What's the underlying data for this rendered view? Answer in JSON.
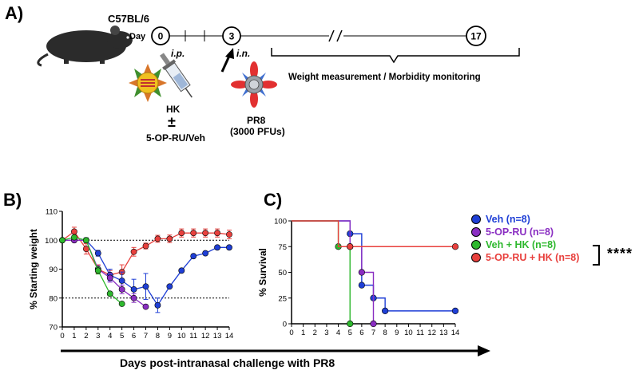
{
  "panels": {
    "a": "A)",
    "b": "B)",
    "c": "C)"
  },
  "timeline": {
    "strain": "C57BL/6",
    "day_label": "Day",
    "days": [
      "0",
      "3",
      "17"
    ],
    "ip_label": "i.p.",
    "in_label": "i.n.",
    "hk_label": "HK",
    "pm_label": "±",
    "treatment_label": "5-OP-RU/Veh",
    "virus_label": "PR8",
    "virus_dose": "(3000 PFUs)",
    "monitor_label": "Weight measurement / Morbidity monitoring"
  },
  "x_axis_title": "Days post-intranasal challenge with PR8",
  "significance": "****",
  "colors": {
    "veh": "#1f3fd6",
    "oprU": "#8a2ec2",
    "vehHK": "#2eb82e",
    "oprHK": "#e8403d"
  },
  "chart_data": [
    {
      "type": "line",
      "title": "",
      "xlabel": "",
      "ylabel": "% Starting weight",
      "ylim": [
        70,
        110
      ],
      "xlim": [
        0,
        14
      ],
      "yticks": [
        70,
        80,
        90,
        100,
        110
      ],
      "xticks": [
        0,
        1,
        2,
        3,
        4,
        5,
        6,
        7,
        8,
        9,
        10,
        11,
        12,
        13,
        14
      ],
      "ref_lines": [
        100,
        80
      ],
      "series": [
        {
          "name": "5-OP-RU + HK",
          "color": "#e8403d",
          "x": [
            0,
            1,
            2,
            3,
            4,
            5,
            6,
            7,
            8,
            9,
            10,
            11,
            12,
            13,
            14
          ],
          "y": [
            100,
            103,
            97,
            90,
            88,
            89,
            96,
            98,
            100.5,
            100.5,
            102.5,
            102.5,
            102.5,
            102.5,
            102
          ],
          "err": [
            0,
            1.5,
            1.8,
            1.5,
            1.5,
            2.5,
            1.5,
            1,
            1.2,
            1.3,
            1.4,
            1.4,
            1.4,
            1.4,
            1.5
          ]
        },
        {
          "name": "Veh",
          "color": "#1f3fd6",
          "x": [
            0,
            1,
            2,
            3,
            4,
            5,
            6,
            7,
            8,
            9,
            10,
            11,
            12,
            13,
            14
          ],
          "y": [
            100,
            100,
            100,
            95.5,
            88,
            86,
            83,
            84,
            77.5,
            84,
            89.5,
            94.5,
            95.5,
            97.5,
            97.5
          ],
          "err": [
            0,
            0.5,
            0.8,
            1,
            2,
            3,
            3.5,
            4.5,
            2.5,
            0,
            0,
            0,
            0,
            0,
            0
          ]
        },
        {
          "name": "5-OP-RU",
          "color": "#8a2ec2",
          "x": [
            0,
            1,
            2,
            3,
            4,
            5,
            6,
            7
          ],
          "y": [
            100,
            100,
            100,
            90,
            87,
            83,
            80,
            77
          ],
          "err": [
            0,
            0.5,
            0.8,
            1.2,
            1.5,
            1.5,
            1.5,
            0
          ]
        },
        {
          "name": "Veh + HK",
          "color": "#2eb82e",
          "x": [
            0,
            1,
            2,
            3,
            4,
            5
          ],
          "y": [
            100,
            101,
            100,
            89.5,
            81.5,
            78
          ],
          "err": [
            0,
            0.5,
            0.8,
            1.2,
            0.5,
            0
          ]
        }
      ]
    },
    {
      "type": "line",
      "title": "",
      "xlabel": "",
      "ylabel": "% Survival",
      "ylim": [
        0,
        100
      ],
      "xlim": [
        0,
        14
      ],
      "yticks": [
        0,
        25,
        50,
        75,
        100
      ],
      "xticks": [
        0,
        1,
        2,
        3,
        4,
        5,
        6,
        7,
        8,
        9,
        10,
        11,
        12,
        13,
        14
      ],
      "legend": [
        "Veh (n=8)",
        "5-OP-RU (n=8)",
        "Veh + HK (n=8)",
        "5-OP-RU + HK (n=8)"
      ],
      "series": [
        {
          "name": "Veh (n=8)",
          "color": "#1f3fd6",
          "steps": [
            [
              0,
              100
            ],
            [
              5,
              87.5
            ],
            [
              6,
              37.5
            ],
            [
              7,
              25
            ],
            [
              8,
              12.5
            ],
            [
              14,
              12.5
            ]
          ],
          "markers": [
            [
              5,
              87.5
            ],
            [
              6,
              37.5
            ],
            [
              7,
              25
            ],
            [
              8,
              12.5
            ],
            [
              14,
              12.5
            ]
          ]
        },
        {
          "name": "5-OP-RU (n=8)",
          "color": "#8a2ec2",
          "steps": [
            [
              0,
              100
            ],
            [
              5,
              75
            ],
            [
              6,
              50
            ],
            [
              7,
              0
            ]
          ],
          "markers": [
            [
              5,
              75
            ],
            [
              6,
              50
            ],
            [
              7,
              0
            ]
          ]
        },
        {
          "name": "Veh + HK (n=8)",
          "color": "#2eb82e",
          "steps": [
            [
              0,
              100
            ],
            [
              4,
              75
            ],
            [
              5,
              0
            ]
          ],
          "markers": [
            [
              4,
              75
            ],
            [
              5,
              0
            ]
          ]
        },
        {
          "name": "5-OP-RU + HK (n=8)",
          "color": "#e8403d",
          "steps": [
            [
              0,
              100
            ],
            [
              4,
              75
            ],
            [
              14,
              75
            ]
          ],
          "markers": [
            [
              5,
              75
            ],
            [
              14,
              75
            ]
          ]
        }
      ]
    }
  ]
}
